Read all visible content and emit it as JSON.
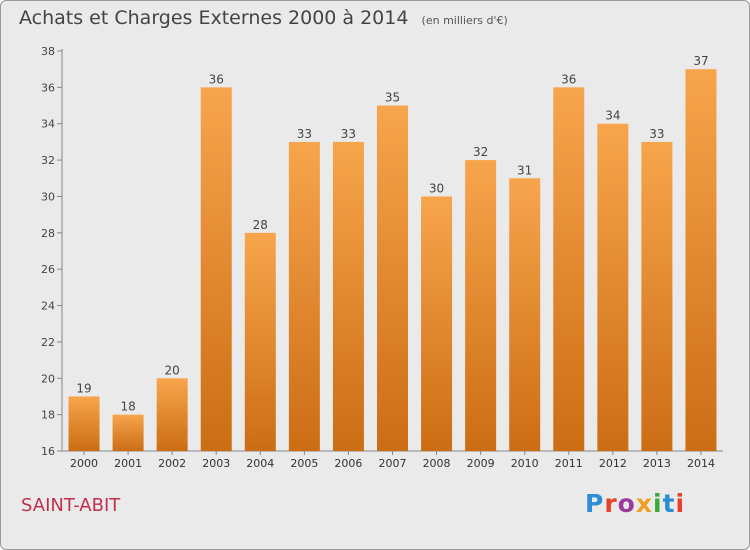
{
  "header": {
    "title": "Achats et Charges Externes 2000 à 2014",
    "unit_note": "(en milliers d'€)"
  },
  "footer": {
    "commune": "SAINT-ABIT",
    "brand": "Proxiti",
    "brand_colors": [
      "#2a8ed4",
      "#e8402a",
      "#9a3a9a",
      "#f0a020",
      "#3aa83a",
      "#2a8ed4",
      "#e8402a"
    ]
  },
  "colors": {
    "bar_top": "#f7a54c",
    "bar_bottom": "#cc6d14",
    "commune_text": "#c0304a",
    "background": "#eaeaea"
  },
  "chart_data": {
    "type": "bar",
    "title": "Achats et Charges Externes 2000 à 2014",
    "subtitle": "(en milliers d'€)",
    "xlabel": "",
    "ylabel": "",
    "categories": [
      "2000",
      "2001",
      "2002",
      "2003",
      "2004",
      "2005",
      "2006",
      "2007",
      "2008",
      "2009",
      "2010",
      "2011",
      "2012",
      "2013",
      "2014"
    ],
    "values": [
      19,
      18,
      20,
      36,
      28,
      33,
      33,
      35,
      30,
      32,
      31,
      36,
      34,
      33,
      37
    ],
    "ylim": [
      16,
      38
    ],
    "yticks": [
      16,
      18,
      20,
      22,
      24,
      26,
      28,
      30,
      32,
      34,
      36,
      38
    ],
    "grid": false,
    "data_labels": true
  }
}
